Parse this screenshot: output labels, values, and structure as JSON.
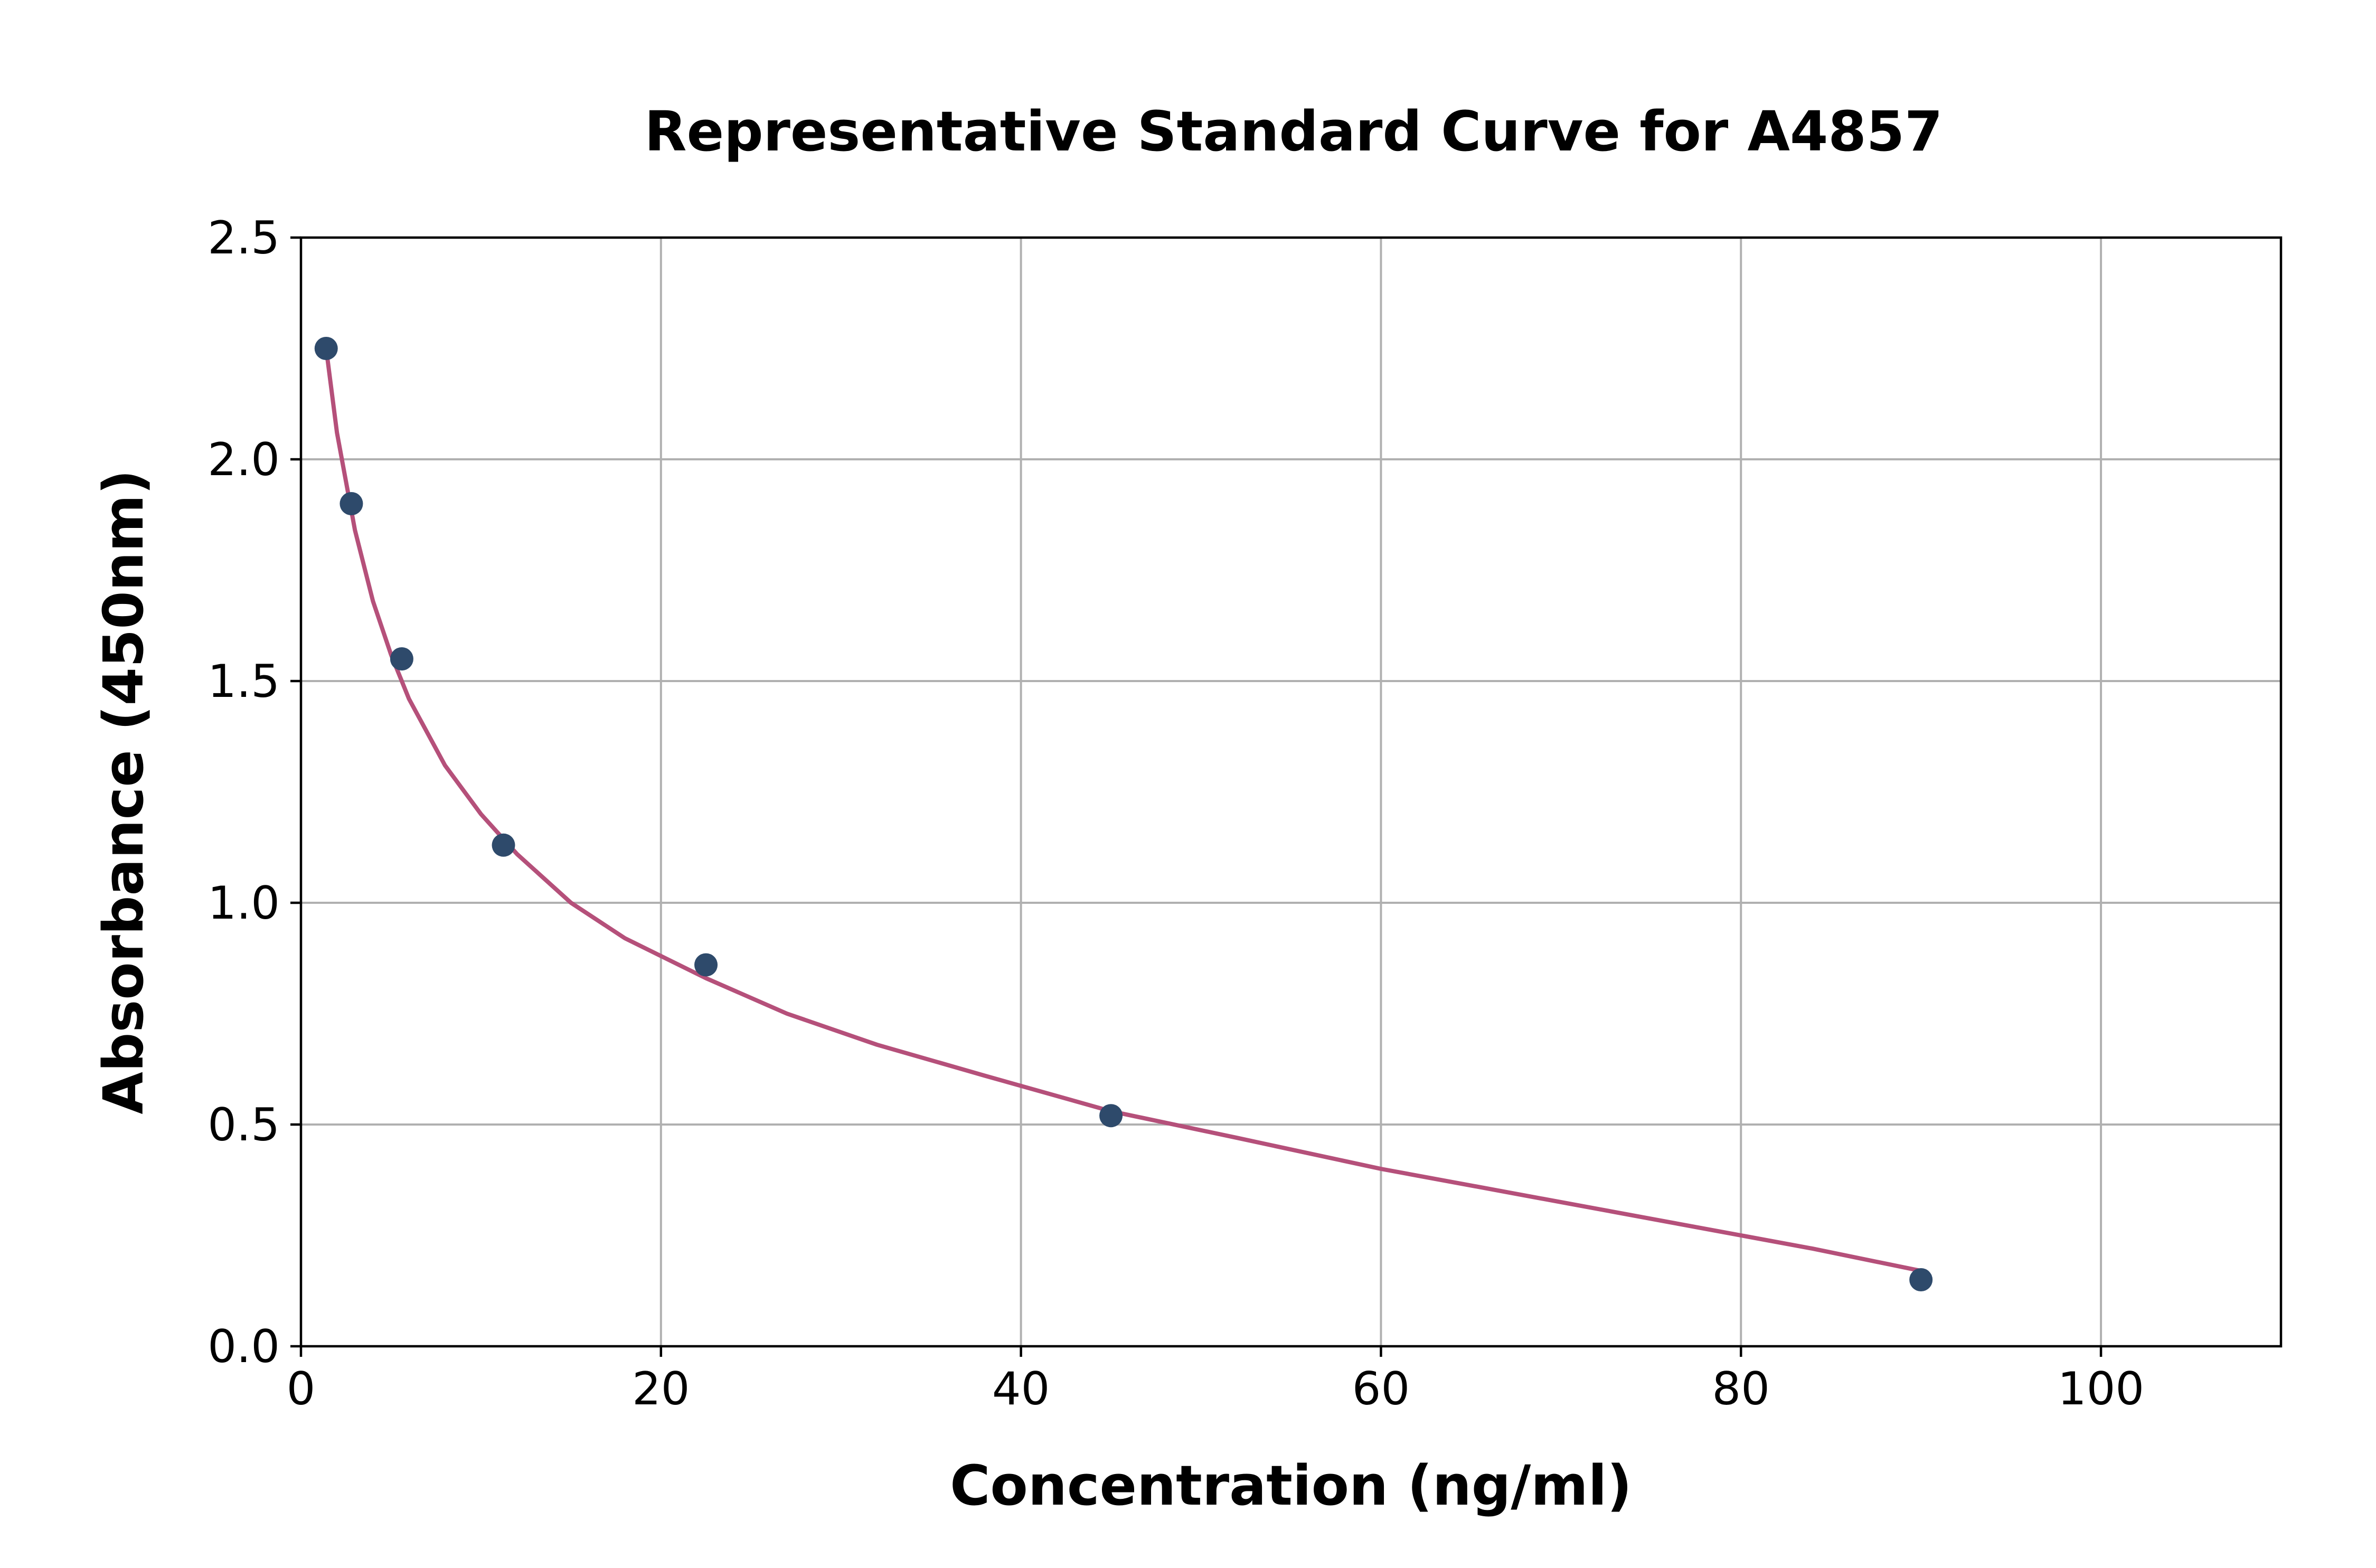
{
  "chart_data": {
    "type": "scatter",
    "title": "Representative Standard Curve for A4857",
    "xlabel": "Concentration (ng/ml)",
    "ylabel": "Absorbance (450nm)",
    "xlim": [
      0,
      110
    ],
    "ylim": [
      0,
      2.5
    ],
    "x_ticks": [
      "0",
      "20",
      "40",
      "60",
      "80",
      "100"
    ],
    "x_tick_values": [
      0,
      20,
      40,
      60,
      80,
      100
    ],
    "y_ticks": [
      "0.0",
      "0.5",
      "1.0",
      "1.5",
      "2.0",
      "2.5"
    ],
    "y_tick_values": [
      0,
      0.5,
      1.0,
      1.5,
      2.0,
      2.5
    ],
    "grid": true,
    "points": {
      "x": [
        1.4,
        2.8,
        5.6,
        11.25,
        22.5,
        45,
        90
      ],
      "y": [
        2.25,
        1.9,
        1.55,
        1.13,
        0.86,
        0.52,
        0.15
      ],
      "color": "#2e4a6b"
    },
    "fit_curve": {
      "x": [
        1.4,
        2.0,
        3.0,
        4.0,
        5.0,
        6.0,
        8.0,
        10.0,
        12.0,
        15.0,
        18.0,
        22.5,
        27.0,
        32.0,
        38.0,
        45.0,
        52.0,
        60.0,
        68.0,
        76.0,
        84.0,
        90.0
      ],
      "y": [
        2.25,
        2.06,
        1.84,
        1.68,
        1.56,
        1.46,
        1.31,
        1.2,
        1.11,
        1.0,
        0.92,
        0.83,
        0.75,
        0.68,
        0.61,
        0.53,
        0.47,
        0.4,
        0.34,
        0.28,
        0.22,
        0.17
      ],
      "color": "#b5507a"
    }
  }
}
